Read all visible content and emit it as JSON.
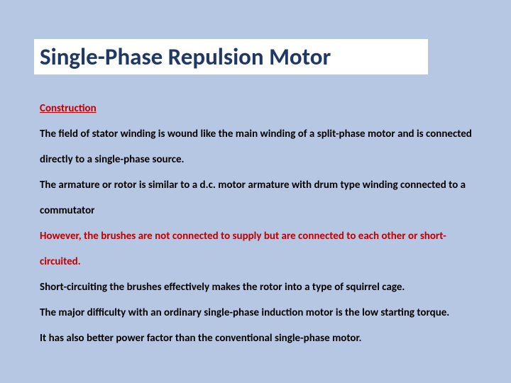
{
  "slide": {
    "background_color": "#b6c7e4",
    "title_box_bg": "#ffffff",
    "title_color": "#203864",
    "body_color": "#000000",
    "accent_color": "#c00000",
    "title": "Single-Phase Repulsion Motor",
    "subheading": "Construction",
    "p1": "The field of stator winding is wound like the main winding of a split-phase motor and is connected directly to a single-phase source.",
    "p2": "The armature or rotor is similar to a d.c. motor armature with drum type winding connected to a commutator",
    "p3": "However, the brushes are not connected to supply but are connected to each other or short-circuited.",
    "p4": "Short-circuiting the brushes effectively makes the rotor into a type of squirrel cage.",
    "p5": "The major difficulty with an ordinary single-phase induction motor is the low starting torque.",
    "p6": "It has also better power factor than the conventional single-phase motor."
  }
}
